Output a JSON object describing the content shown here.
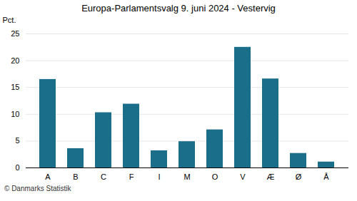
{
  "chart_data": {
    "type": "bar",
    "title": "Europa-Parlamentsvalg 9. juni 2024 - Vestervig",
    "categories": [
      "A",
      "B",
      "C",
      "F",
      "I",
      "M",
      "O",
      "V",
      "Æ",
      "Ø",
      "Å"
    ],
    "values": [
      16.5,
      3.6,
      10.3,
      11.9,
      3.2,
      4.9,
      7.1,
      22.5,
      16.6,
      2.7,
      1.1
    ],
    "color": "#1a6e8a",
    "ylabel": "Pct.",
    "ylim": [
      0,
      25
    ],
    "yticks": [
      0,
      5,
      10,
      15,
      20,
      25
    ],
    "grid": true,
    "caption": "© Danmarks Statistik"
  }
}
